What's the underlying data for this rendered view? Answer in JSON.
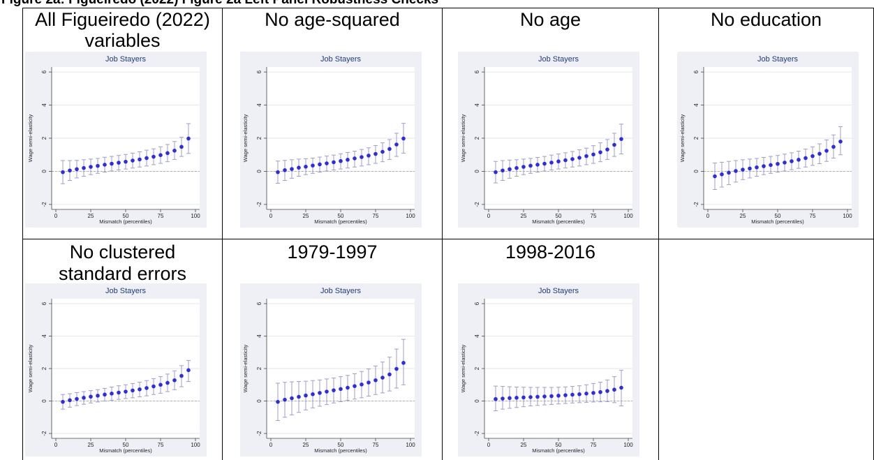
{
  "page": {
    "title": "Figure 2a: Figueiredo (2022) Figure 2a Left Panel Robustness Checks"
  },
  "panels": [
    {
      "head": "All Figueiredo (2022)",
      "sub": "variables"
    },
    {
      "head": "No age-squared",
      "sub": ""
    },
    {
      "head": "No age",
      "sub": ""
    },
    {
      "head": "No education",
      "sub": ""
    },
    {
      "head": "No clustered",
      "sub": "standard errors"
    },
    {
      "head": "1979-1997",
      "sub": ""
    },
    {
      "head": "1998-2016",
      "sub": ""
    }
  ],
  "colors": {
    "point": "#2a2af2",
    "ci": "#9c9cd8",
    "plot_bg": "#eef0f5",
    "zero_line": "#b0b0b0"
  },
  "chart_data": [
    {
      "type": "scatter",
      "title": "Job Stayers",
      "xlabel": "Mismatch (percentiles)",
      "ylabel": "Wage semi-elasticity",
      "x": [
        5,
        10,
        15,
        20,
        25,
        30,
        35,
        40,
        45,
        50,
        55,
        60,
        65,
        70,
        75,
        80,
        85,
        90,
        95
      ],
      "y": [
        -0.05,
        0.05,
        0.13,
        0.2,
        0.27,
        0.33,
        0.4,
        0.46,
        0.52,
        0.58,
        0.65,
        0.72,
        0.8,
        0.88,
        0.98,
        1.1,
        1.25,
        1.48,
        1.98
      ],
      "ci_low": [
        -0.75,
        -0.55,
        -0.4,
        -0.3,
        -0.2,
        -0.12,
        -0.05,
        0.02,
        0.08,
        0.14,
        0.2,
        0.26,
        0.32,
        0.4,
        0.48,
        0.58,
        0.72,
        0.9,
        1.08
      ],
      "ci_high": [
        0.65,
        0.65,
        0.66,
        0.7,
        0.74,
        0.78,
        0.85,
        0.9,
        0.96,
        1.02,
        1.1,
        1.18,
        1.28,
        1.36,
        1.48,
        1.62,
        1.8,
        2.06,
        2.88
      ],
      "xlim": [
        0,
        100
      ],
      "ylim": [
        -2.3,
        6.3
      ],
      "xticks": [
        "0",
        "25",
        "50",
        "75",
        "100"
      ],
      "yticks": [
        "-2",
        "0",
        "2",
        "4",
        "6"
      ],
      "grid": true
    },
    {
      "type": "scatter",
      "title": "Job Stayers",
      "xlabel": "Mismatch (percentiles)",
      "ylabel": "Wage semi-elasticity",
      "x": [
        5,
        10,
        15,
        20,
        25,
        30,
        35,
        40,
        45,
        50,
        55,
        60,
        65,
        70,
        75,
        80,
        85,
        90,
        95
      ],
      "y": [
        -0.05,
        0.07,
        0.14,
        0.22,
        0.28,
        0.35,
        0.42,
        0.48,
        0.55,
        0.62,
        0.7,
        0.78,
        0.86,
        0.95,
        1.05,
        1.18,
        1.35,
        1.62,
        1.98
      ],
      "ci_low": [
        -0.72,
        -0.55,
        -0.42,
        -0.3,
        -0.2,
        -0.12,
        -0.05,
        0.02,
        0.08,
        0.14,
        0.2,
        0.26,
        0.32,
        0.4,
        0.48,
        0.58,
        0.72,
        0.9,
        1.1
      ],
      "ci_high": [
        0.62,
        0.66,
        0.7,
        0.74,
        0.76,
        0.8,
        0.86,
        0.92,
        0.98,
        1.06,
        1.14,
        1.22,
        1.32,
        1.42,
        1.56,
        1.72,
        1.92,
        2.3,
        2.9
      ],
      "xlim": [
        0,
        100
      ],
      "ylim": [
        -2.3,
        6.3
      ],
      "xticks": [
        "0",
        "25",
        "50",
        "75",
        "100"
      ],
      "yticks": [
        "-2",
        "0",
        "2",
        "4",
        "6"
      ],
      "grid": true
    },
    {
      "type": "scatter",
      "title": "Job Stayers",
      "xlabel": "Mismatch (percentiles)",
      "ylabel": "Wage semi-elasticity",
      "x": [
        5,
        10,
        15,
        20,
        25,
        30,
        35,
        40,
        45,
        50,
        55,
        60,
        65,
        70,
        75,
        80,
        85,
        90,
        95
      ],
      "y": [
        -0.05,
        0.05,
        0.13,
        0.2,
        0.27,
        0.34,
        0.4,
        0.46,
        0.53,
        0.6,
        0.67,
        0.74,
        0.82,
        0.92,
        1.02,
        1.15,
        1.32,
        1.6,
        1.95
      ],
      "ci_low": [
        -0.7,
        -0.55,
        -0.42,
        -0.3,
        -0.2,
        -0.12,
        -0.05,
        0.02,
        0.08,
        0.14,
        0.2,
        0.26,
        0.32,
        0.4,
        0.48,
        0.58,
        0.72,
        0.9,
        1.05
      ],
      "ci_high": [
        0.6,
        0.65,
        0.68,
        0.7,
        0.74,
        0.78,
        0.84,
        0.9,
        0.98,
        1.05,
        1.12,
        1.2,
        1.3,
        1.4,
        1.55,
        1.72,
        1.92,
        2.3,
        2.85
      ],
      "xlim": [
        0,
        100
      ],
      "ylim": [
        -2.3,
        6.3
      ],
      "xticks": [
        "0",
        "25",
        "50",
        "75",
        "100"
      ],
      "yticks": [
        "-2",
        "0",
        "2",
        "4",
        "6"
      ],
      "grid": true
    },
    {
      "type": "scatter",
      "title": "Job Stayers",
      "xlabel": "Mismatch (percentiles)",
      "ylabel": "Wage semi-elasticity",
      "x": [
        5,
        10,
        15,
        20,
        25,
        30,
        35,
        40,
        45,
        50,
        55,
        60,
        65,
        70,
        75,
        80,
        85,
        90,
        95
      ],
      "y": [
        -0.3,
        -0.18,
        -0.08,
        0.02,
        0.1,
        0.17,
        0.24,
        0.31,
        0.38,
        0.45,
        0.53,
        0.61,
        0.7,
        0.8,
        0.92,
        1.06,
        1.24,
        1.48,
        1.8
      ],
      "ci_low": [
        -1.1,
        -0.95,
        -0.8,
        -0.65,
        -0.5,
        -0.4,
        -0.3,
        -0.2,
        -0.12,
        -0.05,
        0.02,
        0.1,
        0.18,
        0.26,
        0.36,
        0.46,
        0.6,
        0.8,
        1.0
      ],
      "ci_high": [
        0.5,
        0.55,
        0.6,
        0.65,
        0.7,
        0.74,
        0.78,
        0.84,
        0.9,
        0.96,
        1.04,
        1.12,
        1.22,
        1.34,
        1.48,
        1.66,
        1.9,
        2.2,
        2.7
      ],
      "xlim": [
        0,
        100
      ],
      "ylim": [
        -2.3,
        6.3
      ],
      "xticks": [
        "0",
        "25",
        "50",
        "75",
        "100"
      ],
      "yticks": [
        "-2",
        "0",
        "2",
        "4",
        "6"
      ],
      "grid": true
    },
    {
      "type": "scatter",
      "title": "Job Stayers",
      "xlabel": "Mismatch (percentiles)",
      "ylabel": "Wage semi-elasticity",
      "x": [
        5,
        10,
        15,
        20,
        25,
        30,
        35,
        40,
        45,
        50,
        55,
        60,
        65,
        70,
        75,
        80,
        85,
        90,
        95
      ],
      "y": [
        -0.05,
        0.05,
        0.13,
        0.2,
        0.27,
        0.33,
        0.4,
        0.46,
        0.52,
        0.58,
        0.65,
        0.72,
        0.8,
        0.9,
        1.0,
        1.12,
        1.28,
        1.55,
        1.9
      ],
      "ci_low": [
        -0.5,
        -0.38,
        -0.28,
        -0.2,
        -0.12,
        -0.06,
        0.0,
        0.05,
        0.1,
        0.15,
        0.2,
        0.26,
        0.32,
        0.4,
        0.48,
        0.58,
        0.7,
        0.88,
        1.2
      ],
      "ci_high": [
        0.4,
        0.45,
        0.52,
        0.58,
        0.64,
        0.7,
        0.78,
        0.86,
        0.94,
        1.0,
        1.08,
        1.16,
        1.26,
        1.38,
        1.5,
        1.66,
        1.86,
        2.18,
        2.5
      ],
      "xlim": [
        0,
        100
      ],
      "ylim": [
        -2.3,
        6.3
      ],
      "xticks": [
        "0",
        "25",
        "50",
        "75",
        "100"
      ],
      "yticks": [
        "-2",
        "0",
        "2",
        "4",
        "6"
      ],
      "grid": true
    },
    {
      "type": "scatter",
      "title": "Job Stayers",
      "xlabel": "Mismatch (percentiles)",
      "ylabel": "Wage semi-elasticity",
      "x": [
        5,
        10,
        15,
        20,
        25,
        30,
        35,
        40,
        45,
        50,
        55,
        60,
        65,
        70,
        75,
        80,
        85,
        90,
        95
      ],
      "y": [
        -0.05,
        0.08,
        0.17,
        0.26,
        0.34,
        0.42,
        0.5,
        0.58,
        0.66,
        0.74,
        0.82,
        0.92,
        1.02,
        1.14,
        1.28,
        1.44,
        1.64,
        1.98,
        2.35
      ],
      "ci_low": [
        -1.2,
        -1.0,
        -0.85,
        -0.7,
        -0.55,
        -0.42,
        -0.32,
        -0.22,
        -0.12,
        -0.04,
        0.04,
        0.12,
        0.2,
        0.3,
        0.4,
        0.5,
        0.62,
        0.8,
        1.0
      ],
      "ci_high": [
        1.1,
        1.15,
        1.18,
        1.2,
        1.22,
        1.26,
        1.3,
        1.36,
        1.42,
        1.5,
        1.58,
        1.68,
        1.82,
        1.98,
        2.16,
        2.4,
        2.7,
        3.2,
        3.8
      ],
      "xlim": [
        0,
        100
      ],
      "ylim": [
        -2.3,
        6.3
      ],
      "xticks": [
        "0",
        "25",
        "50",
        "75",
        "100"
      ],
      "yticks": [
        "-2",
        "0",
        "2",
        "4",
        "6"
      ],
      "grid": true
    },
    {
      "type": "scatter",
      "title": "Job Stayers",
      "xlabel": "Mismatch (percentiles)",
      "ylabel": "Wage semi-elasticity",
      "x": [
        5,
        10,
        15,
        20,
        25,
        30,
        35,
        40,
        45,
        50,
        55,
        60,
        65,
        70,
        75,
        80,
        85,
        90,
        95
      ],
      "y": [
        0.12,
        0.15,
        0.18,
        0.2,
        0.22,
        0.24,
        0.26,
        0.28,
        0.3,
        0.33,
        0.36,
        0.39,
        0.42,
        0.46,
        0.5,
        0.55,
        0.62,
        0.7,
        0.82
      ],
      "ci_low": [
        -0.6,
        -0.5,
        -0.45,
        -0.4,
        -0.35,
        -0.3,
        -0.27,
        -0.24,
        -0.21,
        -0.18,
        -0.15,
        -0.12,
        -0.1,
        -0.08,
        -0.06,
        -0.05,
        -0.04,
        -0.1,
        -0.3
      ],
      "ci_high": [
        0.92,
        0.9,
        0.88,
        0.86,
        0.85,
        0.84,
        0.84,
        0.84,
        0.84,
        0.85,
        0.87,
        0.9,
        0.94,
        1.0,
        1.08,
        1.16,
        1.3,
        1.5,
        1.9
      ],
      "xlim": [
        0,
        100
      ],
      "ylim": [
        -2.3,
        6.3
      ],
      "xticks": [
        "0",
        "25",
        "50",
        "75",
        "100"
      ],
      "yticks": [
        "-2",
        "0",
        "2",
        "4",
        "6"
      ],
      "grid": true
    }
  ]
}
